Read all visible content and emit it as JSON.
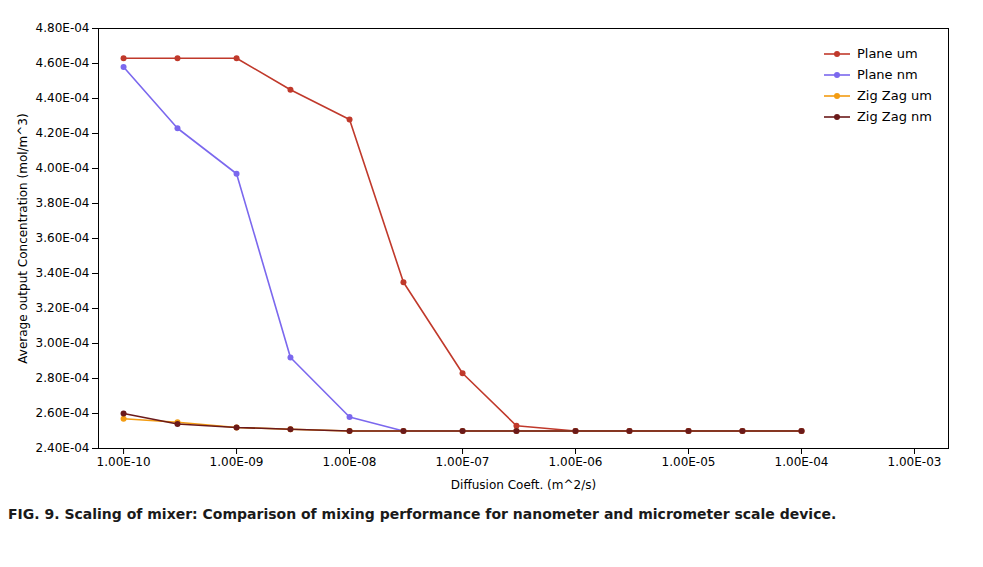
{
  "chart_data": {
    "type": "line",
    "xlabel": "Diffusion Coeft. (m^2/s)",
    "ylabel": "Average output Concentration (mol/m^3)",
    "caption": "FIG. 9. Scaling of mixer: Comparison of mixing performance for nanometer and micrometer scale device.",
    "x": [
      1e-10,
      3e-10,
      1e-09,
      3e-09,
      1e-08,
      3e-08,
      1e-07,
      3e-07,
      1e-06,
      3e-06,
      1e-05,
      3e-05,
      0.0001
    ],
    "series": [
      {
        "name": "Plane um",
        "color": "#C0392B",
        "values": [
          0.000463,
          0.000463,
          0.000463,
          0.000445,
          0.000428,
          0.000335,
          0.000283,
          0.000253,
          0.00025,
          0.00025,
          0.00025,
          0.00025,
          0.00025
        ]
      },
      {
        "name": "Plane nm",
        "color": "#7B68EE",
        "values": [
          0.000458,
          0.000423,
          0.000397,
          0.000292,
          0.000258,
          0.00025,
          0.00025,
          0.00025,
          0.00025,
          0.00025,
          0.00025,
          0.00025,
          0.00025
        ]
      },
      {
        "name": "Zig Zag um",
        "color": "#F39C12",
        "values": [
          0.000257,
          0.000255,
          0.000252,
          0.000251,
          0.00025,
          0.00025,
          0.00025,
          0.00025,
          0.00025,
          0.00025,
          0.00025,
          0.00025,
          0.00025
        ]
      },
      {
        "name": "Zig Zag nm",
        "color": "#6B1A1A",
        "values": [
          0.00026,
          0.000254,
          0.000252,
          0.000251,
          0.00025,
          0.00025,
          0.00025,
          0.00025,
          0.00025,
          0.00025,
          0.00025,
          0.00025,
          0.00025
        ]
      }
    ],
    "log": "x",
    "xlim": [
      6e-11,
      0.002
    ],
    "xticks": [
      {
        "value": 1e-10,
        "label": "1.00E-10"
      },
      {
        "value": 1e-09,
        "label": "1.00E-09"
      },
      {
        "value": 1e-08,
        "label": "1.00E-08"
      },
      {
        "value": 1e-07,
        "label": "1.00E-07"
      },
      {
        "value": 1e-06,
        "label": "1.00E-06"
      },
      {
        "value": 1e-05,
        "label": "1.00E-05"
      },
      {
        "value": 0.0001,
        "label": "1.00E-04"
      },
      {
        "value": 0.001,
        "label": "1.00E-03"
      }
    ],
    "ylim": [
      0.00024,
      0.00048
    ],
    "yticks": [
      {
        "value": 0.00024,
        "label": "2.40E-04"
      },
      {
        "value": 0.00026,
        "label": "2.60E-04"
      },
      {
        "value": 0.00028,
        "label": "2.80E-04"
      },
      {
        "value": 0.0003,
        "label": "3.00E-04"
      },
      {
        "value": 0.00032,
        "label": "3.20E-04"
      },
      {
        "value": 0.00034,
        "label": "3.40E-04"
      },
      {
        "value": 0.00036,
        "label": "3.60E-04"
      },
      {
        "value": 0.00038,
        "label": "3.80E-04"
      },
      {
        "value": 0.0004,
        "label": "4.00E-04"
      },
      {
        "value": 0.00042,
        "label": "4.20E-04"
      },
      {
        "value": 0.00044,
        "label": "4.40E-04"
      },
      {
        "value": 0.00046,
        "label": "4.60E-04"
      },
      {
        "value": 0.00048,
        "label": "4.80E-04"
      }
    ],
    "grid": false,
    "legend": "upper right",
    "marker": "circle"
  }
}
